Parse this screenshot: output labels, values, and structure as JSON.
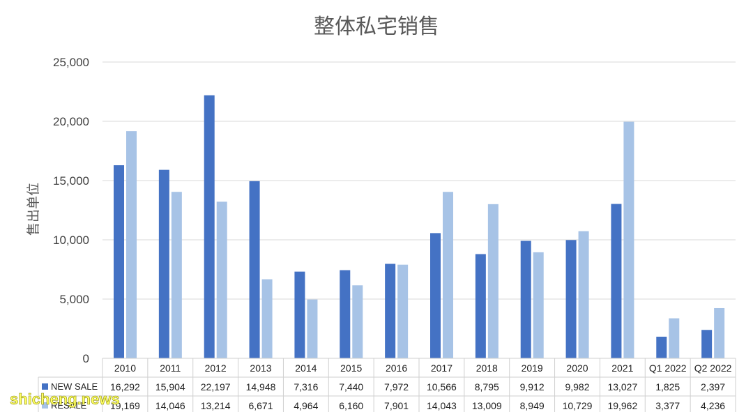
{
  "chart_data": {
    "type": "bar",
    "title": "整体私宅销售",
    "ylabel": "售出单位",
    "xlabel": "",
    "ylim": [
      0,
      25000
    ],
    "yticks": [
      "0",
      "5,000",
      "10,000",
      "15,000",
      "20,000",
      "25,000"
    ],
    "categories": [
      "2010",
      "2011",
      "2012",
      "2013",
      "2014",
      "2015",
      "2016",
      "2017",
      "2018",
      "2019",
      "2020",
      "2021",
      "Q1 2022",
      "Q2 2022"
    ],
    "grid": true,
    "legend_placement": "data-table-left",
    "series": [
      {
        "name": "NEW SALE",
        "color": "#4472c4",
        "values": [
          16292,
          15904,
          22197,
          14948,
          7316,
          7440,
          7972,
          10566,
          8795,
          9912,
          9982,
          13027,
          1825,
          2397
        ],
        "labels": [
          "16,292",
          "15,904",
          "22,197",
          "14,948",
          "7,316",
          "7,440",
          "7,972",
          "10,566",
          "8,795",
          "9,912",
          "9,982",
          "13,027",
          "1,825",
          "2,397"
        ]
      },
      {
        "name": "RESALE",
        "color": "#a7c3e6",
        "values": [
          19169,
          14046,
          13214,
          6671,
          4964,
          6160,
          7901,
          14043,
          13009,
          8949,
          10729,
          19962,
          3377,
          4236
        ],
        "labels": [
          "19,169",
          "14,046",
          "13,214",
          "6,671",
          "4,964",
          "6,160",
          "7,901",
          "14,043",
          "13,009",
          "8,949",
          "10,729",
          "19,962",
          "3,377",
          "4,236"
        ]
      }
    ]
  },
  "watermark": "shicheng.news"
}
